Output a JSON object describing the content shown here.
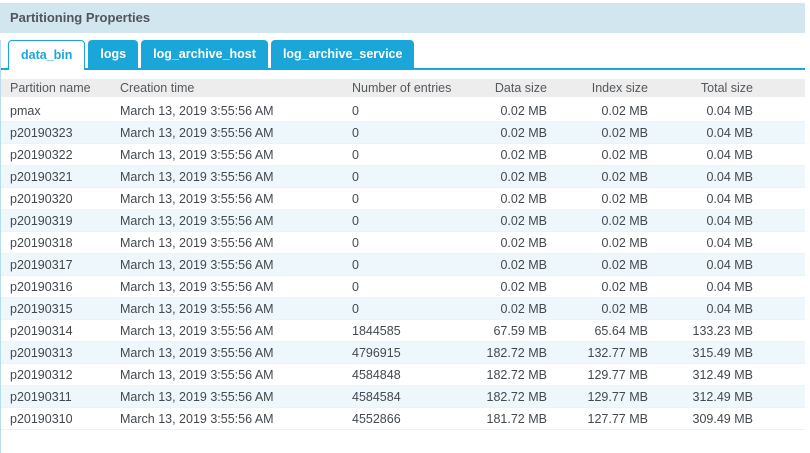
{
  "panel": {
    "title": "Partitioning Properties"
  },
  "tabs": [
    {
      "label": "data_bin",
      "active": true
    },
    {
      "label": "logs",
      "active": false
    },
    {
      "label": "log_archive_host",
      "active": false
    },
    {
      "label": "log_archive_service",
      "active": false
    }
  ],
  "table": {
    "columns": [
      "Partition name",
      "Creation time",
      "Number of entries",
      "Data size",
      "Index size",
      "Total size"
    ],
    "rows": [
      [
        "pmax",
        "March 13, 2019 3:55:56 AM",
        "0",
        "0.02 MB",
        "0.02 MB",
        "0.04 MB"
      ],
      [
        "p20190323",
        "March 13, 2019 3:55:56 AM",
        "0",
        "0.02 MB",
        "0.02 MB",
        "0.04 MB"
      ],
      [
        "p20190322",
        "March 13, 2019 3:55:56 AM",
        "0",
        "0.02 MB",
        "0.02 MB",
        "0.04 MB"
      ],
      [
        "p20190321",
        "March 13, 2019 3:55:56 AM",
        "0",
        "0.02 MB",
        "0.02 MB",
        "0.04 MB"
      ],
      [
        "p20190320",
        "March 13, 2019 3:55:56 AM",
        "0",
        "0.02 MB",
        "0.02 MB",
        "0.04 MB"
      ],
      [
        "p20190319",
        "March 13, 2019 3:55:56 AM",
        "0",
        "0.02 MB",
        "0.02 MB",
        "0.04 MB"
      ],
      [
        "p20190318",
        "March 13, 2019 3:55:56 AM",
        "0",
        "0.02 MB",
        "0.02 MB",
        "0.04 MB"
      ],
      [
        "p20190317",
        "March 13, 2019 3:55:56 AM",
        "0",
        "0.02 MB",
        "0.02 MB",
        "0.04 MB"
      ],
      [
        "p20190316",
        "March 13, 2019 3:55:56 AM",
        "0",
        "0.02 MB",
        "0.02 MB",
        "0.04 MB"
      ],
      [
        "p20190315",
        "March 13, 2019 3:55:56 AM",
        "0",
        "0.02 MB",
        "0.02 MB",
        "0.04 MB"
      ],
      [
        "p20190314",
        "March 13, 2019 3:55:56 AM",
        "1844585",
        "67.59 MB",
        "65.64 MB",
        "133.23 MB"
      ],
      [
        "p20190313",
        "March 13, 2019 3:55:56 AM",
        "4796915",
        "182.72 MB",
        "132.77 MB",
        "315.49 MB"
      ],
      [
        "p20190312",
        "March 13, 2019 3:55:56 AM",
        "4584848",
        "182.72 MB",
        "129.77 MB",
        "312.49 MB"
      ],
      [
        "p20190311",
        "March 13, 2019 3:55:56 AM",
        "4584584",
        "182.72 MB",
        "129.77 MB",
        "312.49 MB"
      ],
      [
        "p20190310",
        "March 13, 2019 3:55:56 AM",
        "4552866",
        "181.72 MB",
        "127.77 MB",
        "309.49 MB"
      ]
    ]
  },
  "colors": {
    "accent": "#1aa6d9",
    "title_bar_bg": "#d2e6ef",
    "header_bg": "#ededed",
    "stripe": "#eef7fb",
    "row_border": "#e9f3f8",
    "panel_border": "#b8dcec",
    "text": "#43494e",
    "header_text": "#53585d",
    "title_text": "#4f555b"
  }
}
